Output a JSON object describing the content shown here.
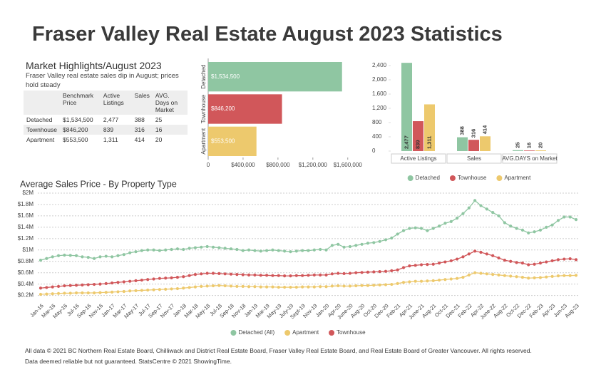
{
  "title": "Fraser Valley Real Estate August 2023 Statistics",
  "highlights": {
    "title": "Market Highlights/August 2023",
    "subtitle": "Fraser Valley real estate sales dip in August; prices hold steady",
    "table": {
      "columns": [
        "Benchmark Price",
        "Active Listings",
        "Sales",
        "AVG. Days on Market"
      ],
      "rows": [
        [
          "Detached",
          "$1,534,500",
          "2,477",
          "388",
          "25"
        ],
        [
          "Townhouse",
          "$846,200",
          "839",
          "316",
          "16"
        ],
        [
          "Apartment",
          "$553,500",
          "1,311",
          "414",
          "20"
        ]
      ]
    }
  },
  "chart_data": [
    {
      "type": "bar",
      "orientation": "horizontal",
      "categories": [
        "Detached",
        "Townhouse",
        "Apartment"
      ],
      "values": [
        1534500,
        846200,
        553500
      ],
      "value_labels": [
        "$1,534,500",
        "$846,200",
        "$553,500"
      ],
      "colors": [
        "#8fc6a2",
        "#d1575a",
        "#edc96d"
      ],
      "xlim": [
        0,
        1700000
      ],
      "xticks": [
        0,
        {
          "value": 400000,
          "label": "$400,000"
        },
        {
          "value": 800000,
          "label": "$800,000"
        },
        {
          "value": 1200000,
          "label": "$1,200,000"
        },
        {
          "value": 1600000,
          "label": "$1,600,000"
        }
      ]
    },
    {
      "type": "bar",
      "categories": [
        "Active Listings",
        "Sales",
        "AVG.DAYS on Market"
      ],
      "series": [
        {
          "name": "Detached",
          "color": "#8fc6a2",
          "values": [
            2477,
            388,
            25
          ],
          "value_labels": [
            "2,477",
            "388",
            "25"
          ]
        },
        {
          "name": "Townhouse",
          "color": "#d1575a",
          "values": [
            839,
            316,
            16
          ]
        },
        {
          "name": "Apartment",
          "color": "#edc96d",
          "values": [
            1311,
            414,
            20
          ],
          "value_labels": [
            "1,311",
            "414",
            "20"
          ]
        }
      ],
      "ylim": [
        0,
        2400
      ],
      "yticks": [
        0,
        400,
        800,
        {
          "value": 1200,
          "label": "1,200"
        },
        {
          "value": 1600,
          "label": "1,600"
        },
        {
          "value": 2000,
          "label": "2,000"
        },
        {
          "value": 2400,
          "label": "2,400"
        }
      ]
    },
    {
      "type": "line",
      "title": "Average Sales Price - By Property Type",
      "categories": [
        "Jan-16",
        null,
        "Mar-16",
        null,
        "May-16",
        null,
        "Jul-16",
        null,
        "Sep-16",
        null,
        "Nov-16",
        null,
        "Jan-17",
        null,
        "Mar-17",
        null,
        "May-17",
        null,
        "Jul-17",
        null,
        "Sep-17",
        null,
        "Nov-17",
        null,
        "Jan-18",
        null,
        "Mar-18",
        null,
        "May-18",
        null,
        "Jul-18",
        null,
        "Sep-18",
        null,
        "Nov-18",
        null,
        "Jan-19",
        null,
        "Mar-19",
        null,
        "May-19",
        null,
        "July-19",
        null,
        "Sept-19",
        null,
        "Nov-19",
        null,
        "Jan-20",
        null,
        "Apr-20",
        null,
        "June-20",
        null,
        "Aug-20",
        null,
        "Oct-20",
        null,
        "Dec-20",
        null,
        "Feb-21",
        null,
        "Apr-21",
        null,
        "June-21",
        null,
        "Aug-21",
        null,
        "Oct-21",
        null,
        "Dec-21",
        null,
        "Feb-22",
        null,
        "Apr-22",
        null,
        "June-22",
        null,
        "Aug-22",
        null,
        "Oct-22",
        null,
        "Dec-22",
        null,
        "Feb-23",
        null,
        "Apr-23",
        null,
        "Jun-23",
        null,
        "Aug-23"
      ],
      "series": [
        {
          "name": "Detached (All)",
          "color": "#8fc6a2",
          "values": [
            820000,
            850000,
            880000,
            900000,
            910000,
            905000,
            900000,
            880000,
            870000,
            850000,
            880000,
            890000,
            880000,
            900000,
            920000,
            950000,
            970000,
            990000,
            1000000,
            1000000,
            990000,
            1000000,
            1010000,
            1020000,
            1010000,
            1030000,
            1040000,
            1050000,
            1060000,
            1050000,
            1040000,
            1030000,
            1020000,
            1010000,
            990000,
            1000000,
            990000,
            980000,
            990000,
            1000000,
            990000,
            980000,
            970000,
            980000,
            990000,
            990000,
            1000000,
            1010000,
            1000000,
            1080000,
            1100000,
            1050000,
            1060000,
            1080000,
            1100000,
            1120000,
            1130000,
            1150000,
            1180000,
            1210000,
            1280000,
            1340000,
            1380000,
            1390000,
            1380000,
            1340000,
            1380000,
            1420000,
            1470000,
            1500000,
            1560000,
            1640000,
            1740000,
            1870000,
            1780000,
            1720000,
            1660000,
            1600000,
            1480000,
            1420000,
            1380000,
            1350000,
            1300000,
            1320000,
            1350000,
            1400000,
            1440000,
            1520000,
            1580000,
            1580000,
            1534500
          ]
        },
        {
          "name": "Apartment",
          "color": "#edc96d",
          "values": [
            220000,
            225000,
            230000,
            235000,
            240000,
            240000,
            245000,
            245000,
            245000,
            245000,
            250000,
            255000,
            260000,
            265000,
            270000,
            280000,
            285000,
            290000,
            295000,
            300000,
            305000,
            310000,
            315000,
            320000,
            330000,
            340000,
            350000,
            360000,
            365000,
            370000,
            375000,
            370000,
            365000,
            360000,
            360000,
            355000,
            355000,
            350000,
            350000,
            350000,
            345000,
            345000,
            345000,
            345000,
            350000,
            350000,
            350000,
            355000,
            355000,
            365000,
            370000,
            365000,
            365000,
            370000,
            375000,
            375000,
            380000,
            385000,
            390000,
            395000,
            410000,
            430000,
            440000,
            450000,
            450000,
            455000,
            460000,
            470000,
            480000,
            490000,
            500000,
            520000,
            560000,
            600000,
            590000,
            580000,
            570000,
            560000,
            550000,
            540000,
            530000,
            520000,
            505000,
            510000,
            515000,
            525000,
            535000,
            545000,
            550000,
            550000,
            553500
          ]
        },
        {
          "name": "Townhouse",
          "color": "#d1575a",
          "values": [
            330000,
            340000,
            350000,
            360000,
            370000,
            375000,
            380000,
            385000,
            390000,
            395000,
            400000,
            410000,
            420000,
            430000,
            440000,
            450000,
            460000,
            470000,
            480000,
            490000,
            500000,
            505000,
            510000,
            520000,
            530000,
            550000,
            570000,
            580000,
            590000,
            590000,
            585000,
            580000,
            575000,
            570000,
            565000,
            560000,
            560000,
            555000,
            555000,
            550000,
            550000,
            545000,
            545000,
            550000,
            550000,
            555000,
            560000,
            560000,
            560000,
            580000,
            590000,
            585000,
            590000,
            600000,
            605000,
            610000,
            615000,
            620000,
            625000,
            635000,
            650000,
            690000,
            720000,
            730000,
            740000,
            745000,
            750000,
            770000,
            790000,
            810000,
            840000,
            880000,
            930000,
            980000,
            960000,
            930000,
            900000,
            860000,
            820000,
            800000,
            780000,
            770000,
            740000,
            750000,
            770000,
            790000,
            810000,
            830000,
            840000,
            845000,
            830000
          ]
        }
      ],
      "ylim": [
        120000,
        2000000
      ],
      "yticks": [
        {
          "value": 200000,
          "label": "$0.2M"
        },
        {
          "value": 400000,
          "label": "$0.4M"
        },
        {
          "value": 600000,
          "label": "$0.6M"
        },
        {
          "value": 800000,
          "label": "$0.8M"
        },
        {
          "value": 1000000,
          "label": "$1M"
        },
        {
          "value": 1200000,
          "label": "$1.2M"
        },
        {
          "value": 1400000,
          "label": "$1.4M"
        },
        {
          "value": 1600000,
          "label": "$1.6M"
        },
        {
          "value": 1800000,
          "label": "$1.8M"
        },
        {
          "value": 2000000,
          "label": "$2M"
        }
      ],
      "grid": true
    }
  ],
  "footer": [
    "All data © 2021 BC Northern Real Estate Board, Chilliwack and District Real Estate Board, Fraser Valley Real Estate Board, and Real Estate Board of Greater Vancouver. All rights reserved.",
    "Data deemed reliable but not guaranteed. StatsCentre © 2021 ShowingTime."
  ]
}
